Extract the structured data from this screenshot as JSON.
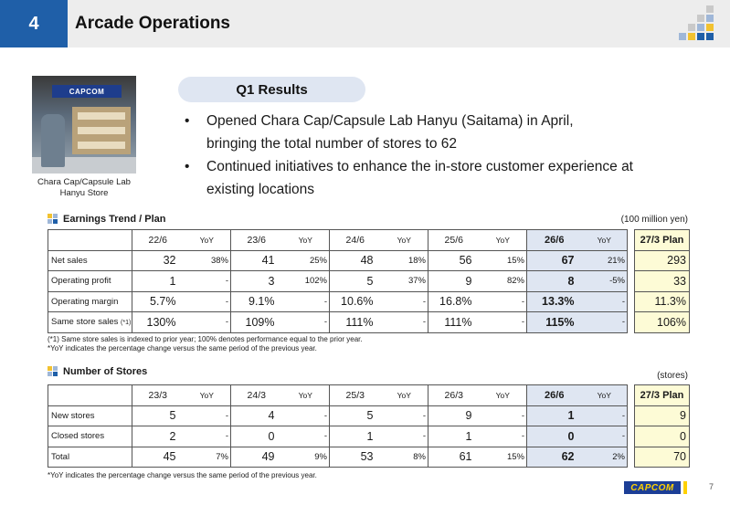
{
  "header": {
    "section_number": "4",
    "title": "Arcade Operations"
  },
  "photo": {
    "sign_text": "CAPCOM",
    "caption_line1": "Chara Cap/Capsule Lab",
    "caption_line2": "Hanyu Store"
  },
  "q1": {
    "title": "Q1 Results",
    "bullets": [
      {
        "line1": "Opened Chara Cap/Capsule Lab Hanyu (Saitama) in April,",
        "line2": "bringing the total number of stores to 62"
      },
      {
        "line1": "Continued initiatives to enhance the in-store customer experience at",
        "line2": "existing locations"
      }
    ]
  },
  "earnings": {
    "heading": "Earnings Trend / Plan",
    "unit": "(100 million yen)",
    "yoy_header": "YoY",
    "periods": [
      "22/6",
      "23/6",
      "24/6",
      "25/6",
      "26/6"
    ],
    "plan_header": "27/3 Plan",
    "rows": [
      {
        "label": "Net sales",
        "label_note": "",
        "values": [
          "32",
          "41",
          "48",
          "56",
          "67"
        ],
        "yoy": [
          "38%",
          "25%",
          "18%",
          "15%",
          "21%"
        ],
        "plan": "293"
      },
      {
        "label": "Operating profit",
        "label_note": "",
        "values": [
          "1",
          "3",
          "5",
          "9",
          "8"
        ],
        "yoy": [
          "-",
          "102%",
          "37%",
          "82%",
          "-5%"
        ],
        "plan": "33"
      },
      {
        "label": "Operating margin",
        "label_note": "",
        "values": [
          "5.7%",
          "9.1%",
          "10.6%",
          "16.8%",
          "13.3%"
        ],
        "yoy": [
          "-",
          "-",
          "-",
          "-",
          "-"
        ],
        "plan": "11.3%"
      },
      {
        "label": "Same store sales",
        "label_note": "(*1)",
        "values": [
          "130%",
          "109%",
          "111%",
          "111%",
          "115%"
        ],
        "yoy": [
          "-",
          "-",
          "-",
          "-",
          "-"
        ],
        "plan": "106%"
      }
    ],
    "note1": "(*1) Same store sales is indexed to prior year; 100% denotes performance equal to the prior year.",
    "note2": "*YoY indicates the percentage change versus the same period of the previous year."
  },
  "stores": {
    "heading": "Number of Stores",
    "unit": "(stores)",
    "yoy_header": "YoY",
    "periods": [
      "23/3",
      "24/3",
      "25/3",
      "26/3",
      "26/6"
    ],
    "plan_header": "27/3 Plan",
    "rows": [
      {
        "label": "New stores",
        "values": [
          "5",
          "4",
          "5",
          "9",
          "1"
        ],
        "yoy": [
          "-",
          "-",
          "-",
          "-",
          "-"
        ],
        "plan": "9"
      },
      {
        "label": "Closed stores",
        "values": [
          "2",
          "0",
          "1",
          "1",
          "0"
        ],
        "yoy": [
          "-",
          "-",
          "-",
          "-",
          "-"
        ],
        "plan": "0"
      },
      {
        "label": "Total",
        "values": [
          "45",
          "49",
          "53",
          "61",
          "62"
        ],
        "yoy": [
          "7%",
          "9%",
          "8%",
          "15%",
          "2%"
        ],
        "plan": "70"
      }
    ],
    "note": "*YoY indicates the percentage change versus the same period of the previous year."
  },
  "footer": {
    "logo_text": "CAPCOM",
    "page_number": "7"
  },
  "colors": {
    "accent_blue": "#1f5fa8",
    "current_period_bg": "#dfe6f2",
    "plan_bg": "#fdfbd6",
    "logo_yellow": "#ffd100"
  }
}
